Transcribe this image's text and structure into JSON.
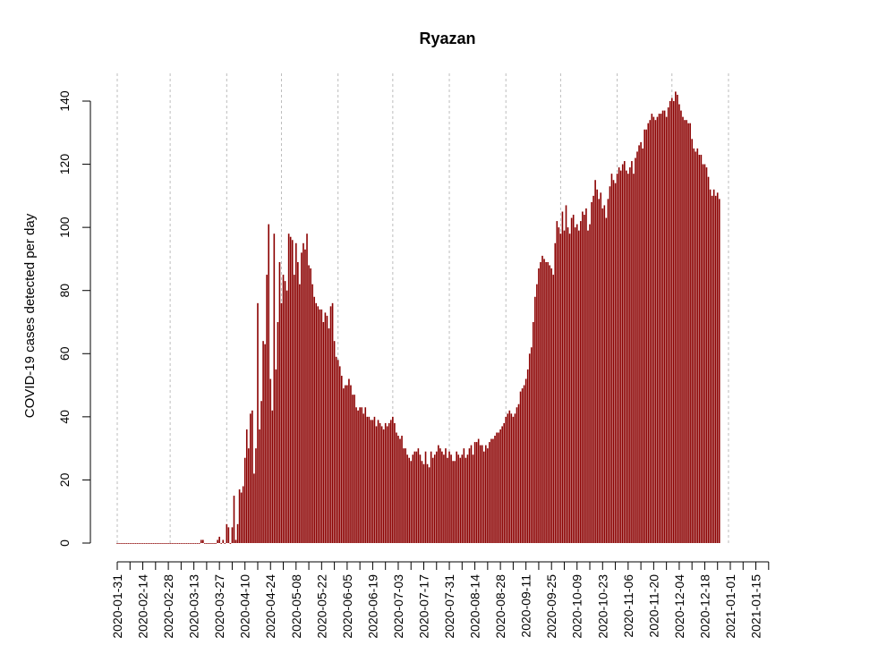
{
  "chart_data": {
    "type": "bar",
    "title": "Ryazan",
    "xlabel": "",
    "ylabel": "COVID-19 cases detected per day",
    "ylim": [
      0,
      140
    ],
    "y_ticks": [
      0,
      20,
      40,
      60,
      80,
      100,
      120,
      140
    ],
    "x_start_date": "2020-01-31",
    "x_end_date": "2021-01-27",
    "x_tick_labels": [
      "2020-01-31",
      "2020-02-14",
      "2020-02-28",
      "2020-03-13",
      "2020-03-27",
      "2020-04-10",
      "2020-04-24",
      "2020-05-08",
      "2020-05-22",
      "2020-06-05",
      "2020-06-19",
      "2020-07-03",
      "2020-07-17",
      "2020-07-31",
      "2020-08-14",
      "2020-08-28",
      "2020-09-11",
      "2020-09-25",
      "2020-10-09",
      "2020-10-23",
      "2020-11-06",
      "2020-11-20",
      "2020-12-04",
      "2020-12-18",
      "2021-01-01",
      "2021-01-15"
    ],
    "reference_dates": [
      "2020-01-31",
      "2020-02-29",
      "2020-03-31",
      "2020-04-30",
      "2020-05-31",
      "2020-06-30",
      "2020-07-31",
      "2020-08-31",
      "2020-09-30",
      "2020-10-31",
      "2020-11-30",
      "2020-12-31"
    ],
    "grid": "vertical dotted lines at month boundaries",
    "bar_color": "#8b0000",
    "series": [
      {
        "name": "COVID-19 cases detected per day",
        "values": [
          0,
          0,
          0,
          0,
          0,
          0,
          0,
          0,
          0,
          0,
          0,
          0,
          0,
          0,
          0,
          0,
          0,
          0,
          0,
          0,
          0,
          0,
          0,
          0,
          0,
          0,
          0,
          0,
          0,
          0,
          0,
          0,
          0,
          0,
          0,
          0,
          0,
          0,
          0,
          0,
          0,
          0,
          0,
          0,
          0,
          0,
          1,
          1,
          0,
          0,
          0,
          0,
          0,
          0,
          0,
          1,
          2,
          0,
          1,
          0,
          6,
          5,
          0,
          5,
          15,
          1,
          6,
          17,
          16,
          18,
          27,
          36,
          30,
          41,
          42,
          22,
          30,
          76,
          36,
          45,
          64,
          63,
          85,
          101,
          52,
          42,
          98,
          55,
          70,
          89,
          76,
          85,
          83,
          80,
          98,
          97,
          96,
          85,
          95,
          89,
          82,
          92,
          95,
          93,
          98,
          88,
          87,
          82,
          78,
          76,
          75,
          74,
          74,
          70,
          73,
          72,
          68,
          75,
          76,
          64,
          59,
          58,
          56,
          53,
          49,
          50,
          50,
          52,
          50,
          47,
          47,
          43,
          42,
          43,
          43,
          41,
          43,
          40,
          40,
          39,
          39,
          40,
          37,
          39,
          38,
          37,
          36,
          38,
          37,
          38,
          39,
          40,
          38,
          35,
          34,
          33,
          34,
          30,
          30,
          28,
          27,
          26,
          28,
          29,
          29,
          30,
          28,
          26,
          25,
          29,
          25,
          24,
          29,
          27,
          28,
          29,
          31,
          30,
          29,
          28,
          30,
          27,
          29,
          28,
          26,
          26,
          29,
          28,
          27,
          28,
          30,
          27,
          28,
          30,
          31,
          28,
          32,
          32,
          33,
          31,
          31,
          29,
          31,
          30,
          32,
          33,
          33,
          34,
          35,
          35,
          36,
          37,
          38,
          40,
          41,
          42,
          41,
          40,
          41,
          43,
          44,
          48,
          49,
          50,
          52,
          55,
          60,
          62,
          70,
          78,
          82,
          87,
          89,
          91,
          90,
          89,
          89,
          88,
          87,
          85,
          95,
          102,
          100,
          98,
          105,
          99,
          107,
          100,
          98,
          103,
          104,
          100,
          101,
          99,
          102,
          105,
          104,
          106,
          99,
          101,
          108,
          110,
          115,
          112,
          109,
          111,
          106,
          107,
          103,
          109,
          113,
          117,
          115,
          114,
          117,
          119,
          118,
          120,
          121,
          118,
          117,
          119,
          121,
          117,
          122,
          124,
          126,
          127,
          125,
          131,
          131,
          133,
          134,
          136,
          135,
          134,
          135,
          136,
          136,
          137,
          137,
          135,
          138,
          140,
          141,
          140,
          143,
          142,
          139,
          137,
          135,
          134,
          134,
          133,
          133,
          128,
          125,
          124,
          125,
          123,
          123,
          120,
          120,
          119,
          116,
          112,
          110,
          112,
          110,
          111,
          109
        ]
      }
    ]
  }
}
